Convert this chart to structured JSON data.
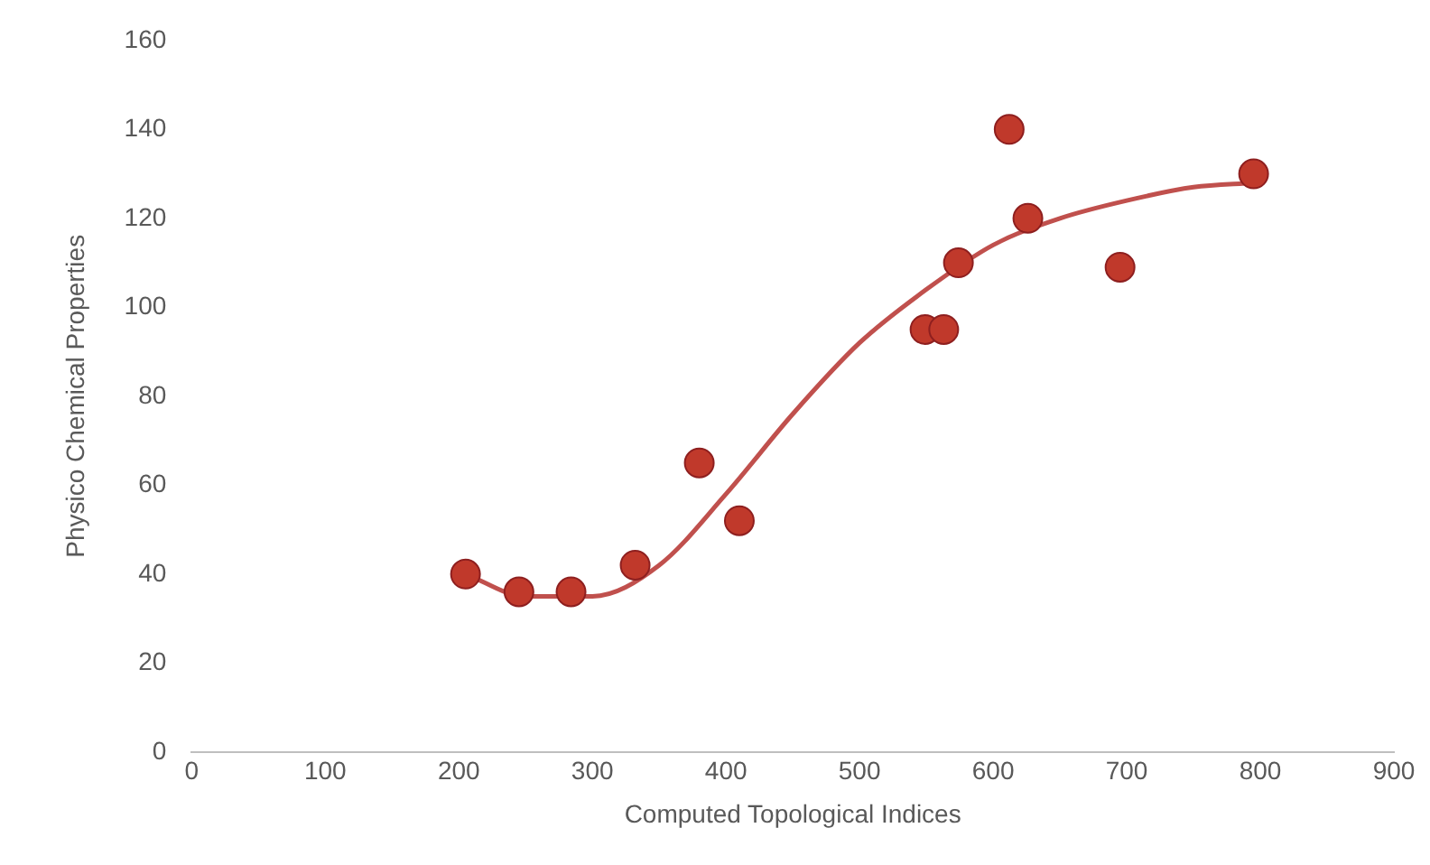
{
  "chart_data": {
    "type": "scatter",
    "xlabel": "Computed Topological Indices",
    "ylabel": "Physico Chemical Properties",
    "xlim": [
      0,
      900
    ],
    "xticks": [
      0,
      100,
      200,
      300,
      400,
      500,
      600,
      700,
      800,
      900
    ],
    "ylim": [
      0,
      160
    ],
    "yticks": [
      0,
      20,
      40,
      60,
      80,
      100,
      120,
      140,
      160
    ],
    "grid": false,
    "legend": false,
    "marker": "circle",
    "series": [
      {
        "color": "#c0392b",
        "x": [
          205,
          245,
          284,
          332,
          380,
          410,
          549,
          563,
          574,
          612,
          626,
          695,
          795
        ],
        "values": [
          40,
          36,
          36,
          42,
          65,
          52,
          95,
          95,
          110,
          140,
          120,
          109,
          130
        ]
      },
      {
        "type": "line",
        "color": "#c0504d",
        "marker": "none",
        "x": [
          205,
          250,
          300,
          350,
          400,
          450,
          500,
          550,
          600,
          650,
          700,
          750,
          795
        ],
        "values": [
          40,
          35,
          35,
          42,
          58,
          76,
          92,
          104,
          114,
          120,
          124,
          127,
          128
        ]
      }
    ]
  }
}
